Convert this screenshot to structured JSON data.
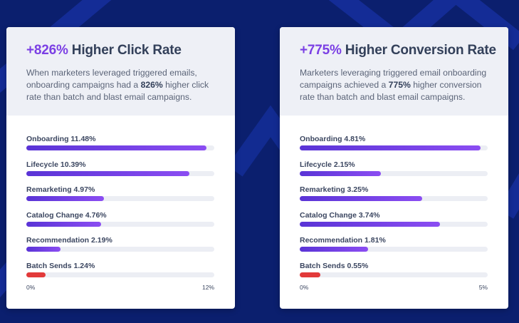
{
  "colors": {
    "background": "#0b1f6e",
    "accent": "#7b3fe4",
    "bar_gradient_start": "#5a34d6",
    "bar_gradient_end": "#8b4df2",
    "bar_highlight": "#e23a3a",
    "track": "#eceef4"
  },
  "cards": [
    {
      "headline_accent": "+826%",
      "headline_rest": "Higher Click Rate",
      "desc_before": "When marketers leveraged triggered emails, onboarding campaigns had a ",
      "desc_bold": "826%",
      "desc_after": " higher click rate than batch and blast email campaigns."
    },
    {
      "headline_accent": "+775%",
      "headline_rest": "Higher Conversion Rate",
      "desc_before": "Marketers leveraging triggered email onboarding campaigns achieved a ",
      "desc_bold": "775%",
      "desc_after": " higher conversion rate than batch and blast email campaigns."
    }
  ],
  "chart_data": [
    {
      "type": "bar",
      "orientation": "horizontal",
      "categories": [
        "Onboarding",
        "Lifecycle",
        "Remarketing",
        "Catalog Change",
        "Recommendation",
        "Batch Sends"
      ],
      "value_labels": [
        "11.48%",
        "10.39%",
        "4.97%",
        "4.76%",
        "2.19%",
        "1.24%"
      ],
      "values": [
        11.48,
        10.39,
        4.97,
        4.76,
        2.19,
        1.24
      ],
      "xlim": [
        0,
        12
      ],
      "xtick_labels": [
        "0%",
        "12%"
      ],
      "highlight_category": "Batch Sends",
      "grid": false
    },
    {
      "type": "bar",
      "orientation": "horizontal",
      "categories": [
        "Onboarding",
        "Lifecycle",
        "Remarketing",
        "Catalog Change",
        "Recommendation",
        "Batch Sends"
      ],
      "value_labels": [
        "4.81%",
        "2.15%",
        "3.25%",
        "3.74%",
        "1.81%",
        "0.55%"
      ],
      "values": [
        4.81,
        2.15,
        3.25,
        3.74,
        1.81,
        0.55
      ],
      "xlim": [
        0,
        5
      ],
      "xtick_labels": [
        "0%",
        "5%"
      ],
      "highlight_category": "Batch Sends",
      "grid": false
    }
  ]
}
